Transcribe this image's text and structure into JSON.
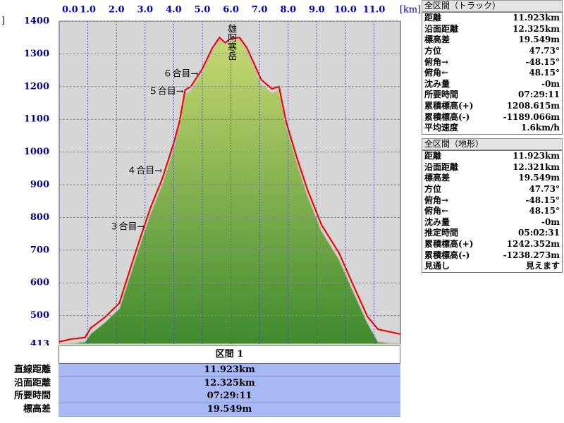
{
  "chart_data": {
    "type": "area",
    "x_unit": "[km]",
    "y_unit": "]",
    "x": [
      0,
      0.4,
      0.9,
      1.1,
      1.6,
      2.1,
      2.5,
      2.86,
      3.2,
      3.6,
      4.0,
      4.2,
      4.4,
      4.6,
      5.0,
      5.35,
      5.6,
      5.8,
      6.0,
      6.3,
      6.56,
      7.06,
      7.43,
      7.68,
      7.93,
      8.3,
      8.67,
      9.16,
      9.78,
      10.27,
      10.77,
      11.14,
      11.63,
      11.923
    ],
    "series": [
      {
        "mark": "area",
        "color": "#5f9a35",
        "values": [
          413,
          415,
          420,
          445,
          480,
          522,
          630,
          728,
          815,
          902,
          1012,
          1078,
          1176,
          1188,
          1242,
          1308,
          1342,
          1328,
          1340,
          1342,
          1306,
          1206,
          1180,
          1188,
          1078,
          968,
          868,
          760,
          672,
          575,
          478,
          420,
          415,
          413
        ]
      },
      {
        "mark": "line",
        "color": "#ff0000",
        "values": [
          420,
          428,
          433,
          462,
          495,
          538,
          648,
          745,
          832,
          918,
          1027,
          1092,
          1190,
          1200,
          1254,
          1318,
          1350,
          1334,
          1347,
          1350,
          1318,
          1221,
          1193,
          1200,
          1092,
          984,
          886,
          778,
          691,
          594,
          497,
          458,
          449,
          443
        ]
      }
    ],
    "xlim": [
      0,
      11.923
    ],
    "xticks": [
      {
        "value": 0,
        "label": "0.0"
      },
      {
        "value": 1,
        "label": "1.0"
      },
      {
        "value": 2,
        "label": "2.0"
      },
      {
        "value": 3,
        "label": "3.0"
      },
      {
        "value": 4,
        "label": "4.0"
      },
      {
        "value": 5,
        "label": "5.0"
      },
      {
        "value": 6,
        "label": "6.0"
      },
      {
        "value": 7,
        "label": "7.0"
      },
      {
        "value": 8,
        "label": "8.0"
      },
      {
        "value": 9,
        "label": "9.0"
      },
      {
        "value": 10,
        "label": "10.0"
      },
      {
        "value": 11,
        "label": "11.0"
      }
    ],
    "ylim": [
      413,
      1400
    ],
    "yticks": [
      413,
      500,
      600,
      700,
      800,
      900,
      1000,
      1100,
      1200,
      1300,
      1400
    ],
    "grid": true,
    "annotations": [
      {
        "text": "雄阿寒岳",
        "x": 6.0,
        "y": 1400,
        "vertical": true
      },
      {
        "text": "６合目→",
        "x": 4.91,
        "y": 1238
      },
      {
        "text": "５合目→",
        "x": 4.4,
        "y": 1184
      },
      {
        "text": "４合目→",
        "x": 3.65,
        "y": 942
      },
      {
        "text": "３合目→",
        "x": 3.04,
        "y": 771
      }
    ]
  },
  "track_panel": {
    "title": "全区間（トラック）",
    "rows": [
      [
        "距離",
        "11.923km"
      ],
      [
        "沿面距離",
        "12.325km"
      ],
      [
        "標高差",
        "19.549m"
      ],
      [
        "方位",
        "47.73°"
      ],
      [
        "俯角→",
        "-48.15°"
      ],
      [
        "俯角←",
        "48.15°"
      ],
      [
        "沈み量",
        "-0m"
      ],
      [
        "所要時間",
        "07:29:11"
      ],
      [
        "累積標高(+)",
        "1208.615m"
      ],
      [
        "累積標高(-)",
        "-1189.066m"
      ],
      [
        "平均速度",
        "1.6km/h"
      ]
    ]
  },
  "terrain_panel": {
    "title": "全区間（地形）",
    "rows": [
      [
        "距離",
        "11.923km"
      ],
      [
        "沿面距離",
        "12.321km"
      ],
      [
        "標高差",
        "19.549m"
      ],
      [
        "方位",
        "47.73°"
      ],
      [
        "俯角→",
        "-48.15°"
      ],
      [
        "俯角←",
        "48.15°"
      ],
      [
        "沈み量",
        "-0m"
      ],
      [
        "推定時間",
        "05:02:31"
      ],
      [
        "累積標高(+)",
        "1242.352m"
      ],
      [
        "累積標高(-)",
        "-1238.273m"
      ],
      [
        "見通し",
        "見えます"
      ]
    ]
  },
  "section": {
    "title": "区間 1",
    "rows": [
      [
        "直線距離",
        "11.923km"
      ],
      [
        "沿面距離",
        "12.325km"
      ],
      [
        "所要時間",
        "07:29:11"
      ],
      [
        "標高差",
        "19.549m"
      ]
    ]
  }
}
